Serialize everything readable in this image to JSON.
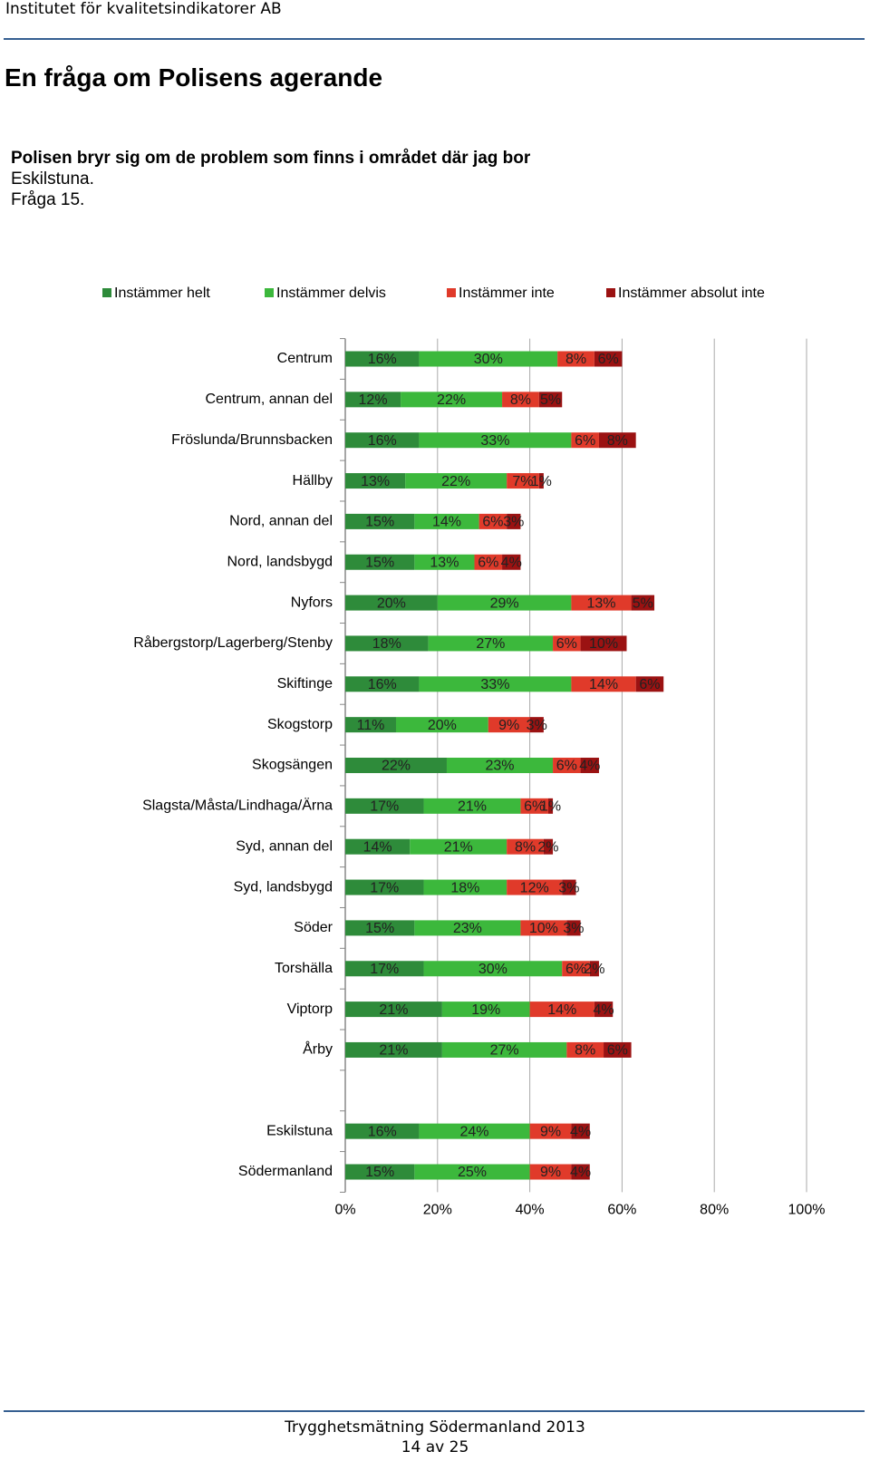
{
  "header": {
    "organization": "Institutet för kvalitetsindikatorer AB"
  },
  "title": "En fråga om Polisens agerande",
  "question": {
    "text": "Polisen bryr sig om de problem som finns i området där jag bor",
    "area": "Eskilstuna.",
    "number": "Fråga 15."
  },
  "chart_data": {
    "type": "stacked-barh",
    "categories": [
      "Centrum",
      "Centrum, annan del",
      "Fröslunda/Brunnsbacken",
      "Hällby",
      "Nord, annan del",
      "Nord, landsbygd",
      "Nyfors",
      "Råbergstorp/Lagerberg/Stenby",
      "Skiftinge",
      "Skogstorp",
      "Skogsängen",
      "Slagsta/Måsta/Lindhaga/Ärna",
      "Syd, annan del",
      "Syd, landsbygd",
      "Söder",
      "Torshälla",
      "Viptorp",
      "Årby",
      null,
      "Eskilstuna",
      "Södermanland"
    ],
    "series": [
      {
        "name": "Instämmer helt",
        "color": "#2e8b3a",
        "values": [
          16,
          12,
          16,
          13,
          15,
          15,
          20,
          18,
          16,
          11,
          22,
          17,
          14,
          17,
          15,
          17,
          21,
          21,
          null,
          16,
          15
        ],
        "value_labels": [
          "16%",
          "12%",
          "16%",
          "13%",
          "15%",
          "15%",
          "20%",
          "18%",
          "16%",
          "11%",
          "22%",
          "17%",
          "14%",
          "17%",
          "15%",
          "17%",
          "21%",
          "21%",
          null,
          "16%",
          "15%"
        ]
      },
      {
        "name": "Instämmer delvis",
        "color": "#3cb83c",
        "values": [
          30,
          22,
          33,
          22,
          14,
          13,
          29,
          27,
          33,
          20,
          23,
          21,
          21,
          18,
          23,
          30,
          19,
          27,
          null,
          24,
          25
        ],
        "value_labels": [
          "30%",
          "22%",
          "33%",
          "22%",
          "14%",
          "13%",
          "29%",
          "27%",
          "33%",
          "20%",
          "23%",
          "21%",
          "21%",
          "18%",
          "23%",
          "30%",
          "19%",
          "27%",
          null,
          "24%",
          "25%"
        ]
      },
      {
        "name": "Instämmer inte",
        "color": "#e03a2a",
        "values": [
          8,
          8,
          6,
          7,
          6,
          6,
          13,
          6,
          14,
          9,
          6,
          6,
          8,
          12,
          10,
          6,
          14,
          8,
          null,
          9,
          9
        ],
        "value_labels": [
          "8%",
          "8%",
          "6%",
          "7%",
          "6%",
          "6%",
          "13%",
          "6%",
          "14%",
          "9%",
          "6%",
          "6%",
          "8%",
          "12%",
          "10%",
          "6%",
          "14%",
          "8%",
          null,
          "9%",
          "9%"
        ]
      },
      {
        "name": "Instämmer absolut inte",
        "color": "#9b1212",
        "values": [
          6,
          5,
          8,
          1,
          3,
          4,
          5,
          10,
          6,
          3,
          4,
          1,
          2,
          3,
          3,
          2,
          4,
          6,
          null,
          4,
          4
        ],
        "value_labels": [
          "6%",
          "5%",
          "8%",
          "1%",
          "3%",
          "4%",
          "5%",
          "10%",
          "6%",
          "3%",
          "4%",
          "1%",
          "2%",
          "3%",
          "3%",
          "2%",
          "4%",
          "6%",
          null,
          "4%",
          "4%"
        ]
      }
    ],
    "xlim": [
      0,
      100
    ],
    "xticks": [
      {
        "value": 0,
        "label": "0%"
      },
      {
        "value": 20,
        "label": "20%"
      },
      {
        "value": 40,
        "label": "40%"
      },
      {
        "value": 60,
        "label": "60%"
      },
      {
        "value": 80,
        "label": "80%"
      },
      {
        "value": 100,
        "label": "100%"
      }
    ],
    "grid": true,
    "legend": "top"
  },
  "footer": {
    "survey": "Trygghetsmätning Södermanland 2013",
    "page": "14 av 25"
  }
}
